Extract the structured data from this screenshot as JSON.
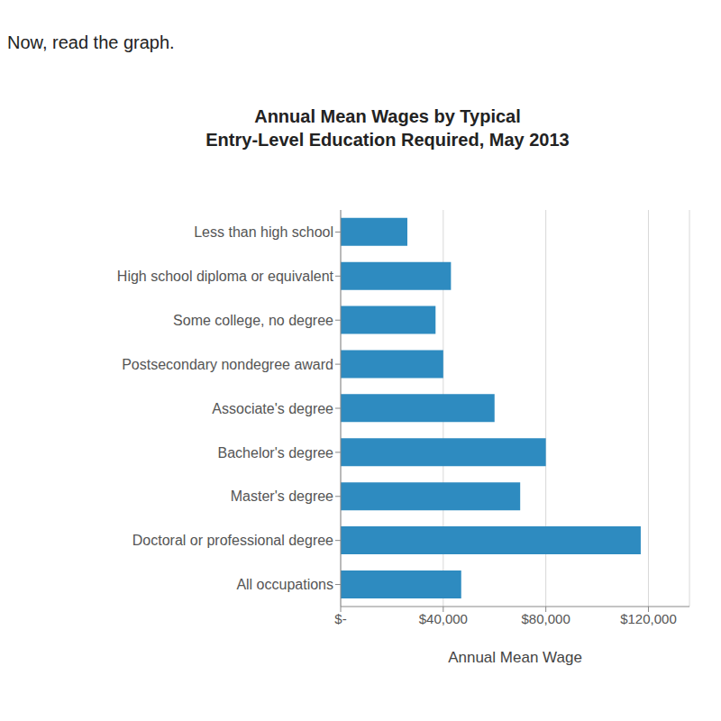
{
  "instruction": "Now, read the graph.",
  "chart_data": {
    "type": "bar",
    "orientation": "horizontal",
    "title": "Annual Mean Wages by Typical\nEntry-Level Education Required, May 2013",
    "x_label": "Annual Mean Wage",
    "categories": [
      "Less than high school",
      "High school diploma or equivalent",
      "Some college, no degree",
      "Postsecondary nondegree award",
      "Associate's degree",
      "Bachelor's degree",
      "Master's degree",
      "Doctoral or professional degree",
      "All occupations"
    ],
    "values": [
      26000,
      43000,
      37000,
      40000,
      60000,
      80000,
      70000,
      117000,
      47000
    ],
    "color": "#2e8bc0",
    "xlim": [
      0,
      136000
    ],
    "xticks": [
      {
        "value": 0,
        "label": "$-"
      },
      {
        "value": 40000,
        "label": "$40,000"
      },
      {
        "value": 80000,
        "label": "$80,000"
      },
      {
        "value": 120000,
        "label": "$120,000"
      }
    ],
    "grid": true
  }
}
